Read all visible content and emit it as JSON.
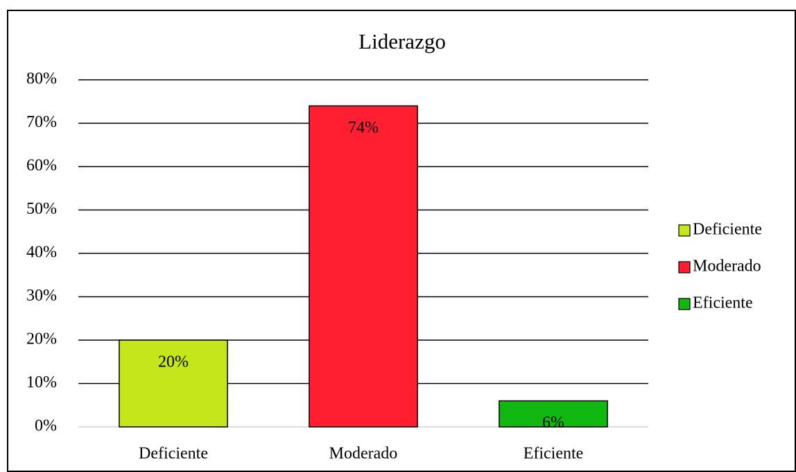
{
  "chart_data": {
    "type": "bar",
    "title": "Liderazgo",
    "categories": [
      "Deficiente",
      "Moderado",
      "Eficiente"
    ],
    "values": [
      20,
      74,
      6
    ],
    "value_labels": [
      "20%",
      "74%",
      "6%"
    ],
    "colors": [
      "#c5e61a",
      "#ff1f31",
      "#12b812"
    ],
    "ylim": [
      0,
      80
    ],
    "yticks": [
      {
        "value": 0,
        "label": "0%"
      },
      {
        "value": 10,
        "label": "10%"
      },
      {
        "value": 20,
        "label": "20%"
      },
      {
        "value": 30,
        "label": "30%"
      },
      {
        "value": 40,
        "label": "40%"
      },
      {
        "value": 50,
        "label": "50%"
      },
      {
        "value": 60,
        "label": "60%"
      },
      {
        "value": 70,
        "label": "70%"
      },
      {
        "value": 80,
        "label": "80%"
      }
    ],
    "grid": true,
    "legend": "right"
  }
}
